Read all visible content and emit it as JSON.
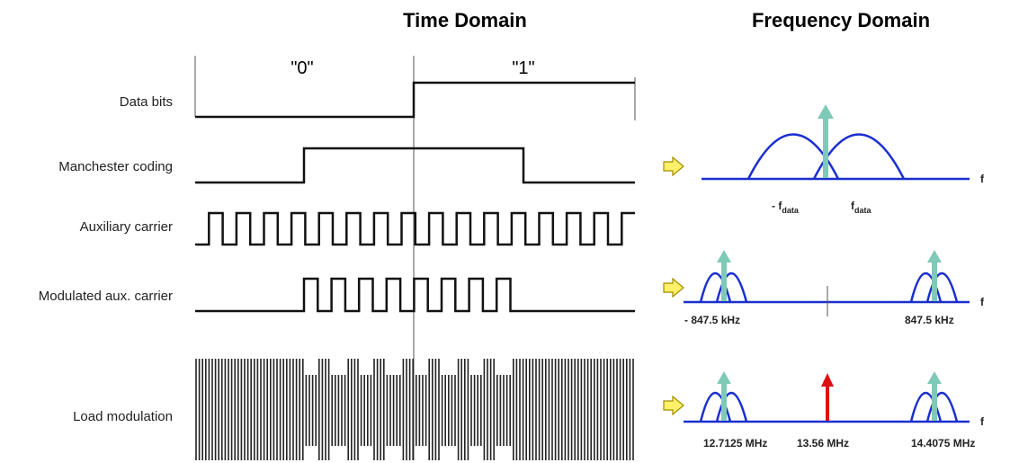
{
  "headers": {
    "time_domain": "Time Domain",
    "frequency_domain": "Frequency Domain"
  },
  "bits": {
    "zero": "\"0\"",
    "one": "\"1\""
  },
  "rows": [
    {
      "label": "Data bits"
    },
    {
      "label": "Manchester coding"
    },
    {
      "label": "Auxiliary carrier"
    },
    {
      "label": "Modulated aux. carrier"
    },
    {
      "label": "Load modulation"
    }
  ],
  "spectra": {
    "manchester": {
      "axis": "f",
      "neg_label_main": "- f",
      "neg_label_sub": "data",
      "pos_label_main": "f",
      "pos_label_sub": "data"
    },
    "subcarrier": {
      "axis": "f",
      "left_label": "- 847.5 kHz",
      "right_label": "847.5 kHz"
    },
    "load": {
      "axis": "f",
      "left_label": "12.7125 MHz",
      "center_label": "13.56 MHz",
      "right_label": "14.4075 MHz"
    }
  },
  "colors": {
    "spectrum_line": "#1a2fd0",
    "teal_arrow": "#7fc9b8",
    "carrier_arrow": "#dd1111",
    "pointer_arrow": "#fff06a"
  }
}
